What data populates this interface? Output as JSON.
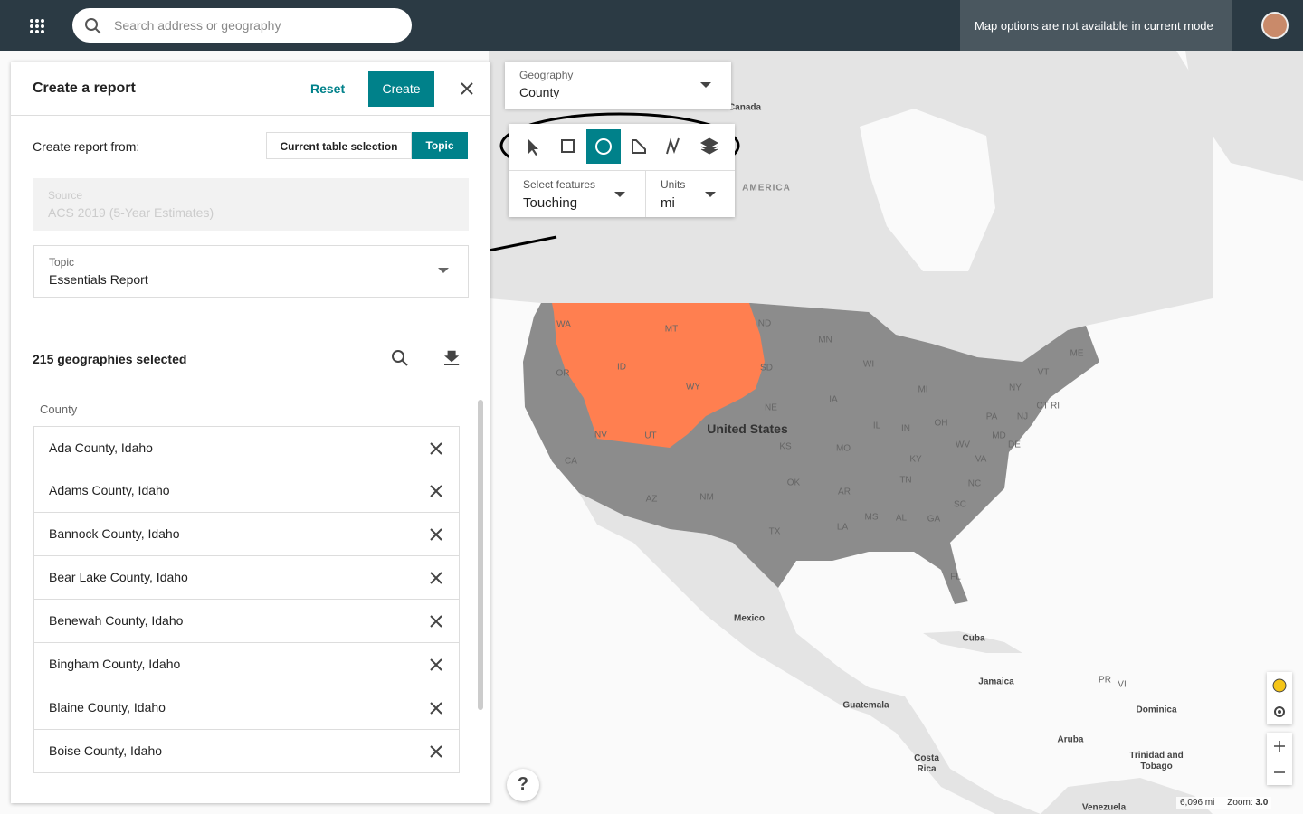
{
  "top_bar": {
    "search_placeholder": "Search address or geography",
    "map_options_notice": "Map options are not available in current mode"
  },
  "report_panel": {
    "title": "Create a report",
    "reset": "Reset",
    "create": "Create",
    "create_from_label": "Create report from:",
    "tabs": [
      "Current table selection",
      "Topic"
    ],
    "source": {
      "label": "Source",
      "value": "ACS 2019 (5-Year Estimates)"
    },
    "topic": {
      "label": "Topic",
      "value": "Essentials Report"
    },
    "selection_count": "215 geographies selected",
    "list_header": "County",
    "items": [
      "Ada County, Idaho",
      "Adams County, Idaho",
      "Bannock County, Idaho",
      "Bear Lake County, Idaho",
      "Benewah County, Idaho",
      "Bingham County, Idaho",
      "Blaine County, Idaho",
      "Boise County, Idaho"
    ]
  },
  "map_controls": {
    "geography": {
      "label": "Geography",
      "value": "County"
    },
    "select_features": {
      "label": "Select features",
      "value": "Touching"
    },
    "units": {
      "label": "Units",
      "value": "mi"
    }
  },
  "map": {
    "labels": [
      "Canada",
      "AMERICA",
      "WA",
      "MT",
      "ND",
      "MN",
      "OR",
      "ID",
      "SD",
      "WI",
      "MI",
      "VT",
      "ME",
      "NY",
      "WY",
      "IA",
      "NE",
      "CT",
      "RI",
      "PA",
      "NJ",
      "United States",
      "IL",
      "IN",
      "OH",
      "NV",
      "UT",
      "KS",
      "MO",
      "WV",
      "MD",
      "DE",
      "KY",
      "VA",
      "CA",
      "TN",
      "NC",
      "OK",
      "AR",
      "AZ",
      "NM",
      "SC",
      "MS",
      "AL",
      "GA",
      "LA",
      "TX",
      "FL",
      "Mexico",
      "Cuba",
      "Jamaica",
      "PR",
      "VI",
      "Dominica",
      "Guatemala",
      "Aruba",
      "Trinidad and Tobago",
      "Costa Rica",
      "Venezuela"
    ],
    "help": "?",
    "scale": "6,096 mi",
    "zoom_label": "Zoom:",
    "zoom_value": "3.0"
  }
}
